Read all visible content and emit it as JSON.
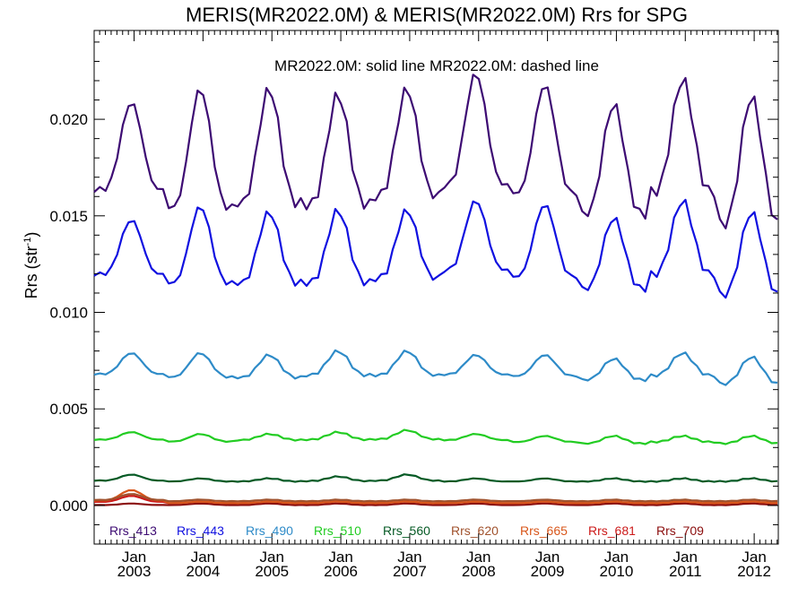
{
  "chart_data": {
    "type": "line",
    "title": "MERIS(MR2022.0M) & MERIS(MR2022.0M)  Rrs for SPG",
    "annotation": "MR2022.0M: solid line   MR2022.0M: dashed line",
    "ylabel": "Rrs (str",
    "ylabel_sup": "-1",
    "ylabel_suffix": ")",
    "xlabel": "",
    "ylim": [
      -0.002,
      0.0246
    ],
    "xlim": [
      2002.42,
      2012.35
    ],
    "y_ticks": [
      0.0,
      0.005,
      0.01,
      0.015,
      0.02
    ],
    "y_tick_labels": [
      "0.000",
      "0.005",
      "0.010",
      "0.015",
      "0.020"
    ],
    "x_ticks": [
      {
        "value": 2003.0,
        "month": "Jan",
        "year": "2003"
      },
      {
        "value": 2004.0,
        "month": "Jan",
        "year": "2004"
      },
      {
        "value": 2005.0,
        "month": "Jan",
        "year": "2005"
      },
      {
        "value": 2006.0,
        "month": "Jan",
        "year": "2006"
      },
      {
        "value": 2007.0,
        "month": "Jan",
        "year": "2007"
      },
      {
        "value": 2008.0,
        "month": "Jan",
        "year": "2008"
      },
      {
        "value": 2009.0,
        "month": "Jan",
        "year": "2009"
      },
      {
        "value": 2010.0,
        "month": "Jan",
        "year": "2010"
      },
      {
        "value": 2011.0,
        "month": "Jan",
        "year": "2011"
      },
      {
        "value": 2012.0,
        "month": "Jan",
        "year": "2012"
      }
    ],
    "grid": false,
    "legend_position": "bottom",
    "series": [
      {
        "name": "Rrs_413",
        "color": "#3d0b73",
        "base": 0.0176,
        "amp": 0.0038,
        "noise": 0.00045,
        "trough": [
          0.0151,
          0.0137,
          0.014,
          0.014,
          0.0145,
          0.015,
          0.0146,
          0.0135,
          0.0146,
          0.0127
        ],
        "peak": [
          0.0209,
          0.0216,
          0.0216,
          0.0213,
          0.0216,
          0.0224,
          0.0218,
          0.0208,
          0.0221,
          0.0212
        ]
      },
      {
        "name": "Rrs_443",
        "color": "#1010e0",
        "base": 0.0129,
        "amp": 0.0024,
        "noise": 0.0003,
        "trough": [
          0.0112,
          0.0104,
          0.0105,
          0.0105,
          0.0108,
          0.0112,
          0.0108,
          0.0102,
          0.0109,
          0.0097
        ],
        "peak": [
          0.0148,
          0.0155,
          0.0152,
          0.0153,
          0.0153,
          0.0158,
          0.0156,
          0.0149,
          0.0158,
          0.0152
        ]
      },
      {
        "name": "Rrs_490",
        "color": "#2e8bc8",
        "base": 0.0071,
        "amp": 0.0007,
        "noise": 0.00012,
        "trough": [
          0.0065,
          0.0063,
          0.0063,
          0.0064,
          0.0064,
          0.0065,
          0.0064,
          0.0062,
          0.0064,
          0.0059
        ],
        "peak": [
          0.0079,
          0.0079,
          0.0078,
          0.008,
          0.008,
          0.0078,
          0.0078,
          0.0076,
          0.0079,
          0.0077
        ]
      },
      {
        "name": "Rrs_510",
        "color": "#22cc22",
        "base": 0.00345,
        "amp": 0.0002,
        "noise": 6e-05,
        "trough": [
          0.0033,
          0.0032,
          0.0033,
          0.0033,
          0.0033,
          0.0033,
          0.0032,
          0.0031,
          0.0032,
          0.0031
        ],
        "peak": [
          0.0038,
          0.0037,
          0.0037,
          0.0038,
          0.0039,
          0.0037,
          0.0036,
          0.0036,
          0.0036,
          0.0036
        ]
      },
      {
        "name": "Rrs_560",
        "color": "#065a25",
        "base": 0.00135,
        "amp": 0.0001,
        "noise": 4e-05,
        "trough": [
          0.0012,
          0.0012,
          0.0012,
          0.0012,
          0.0012,
          0.0012,
          0.0012,
          0.0012,
          0.0012,
          0.0012
        ],
        "peak": [
          0.0016,
          0.0014,
          0.0014,
          0.0015,
          0.0016,
          0.0014,
          0.0014,
          0.0014,
          0.0014,
          0.0014
        ]
      },
      {
        "name": "Rrs_620",
        "color": "#a0522d",
        "base": 0.00025,
        "amp": 4e-05,
        "noise": 2e-05,
        "trough": [
          0.0002,
          0.0002,
          0.0002,
          0.0002,
          0.0002,
          0.0002,
          0.0002,
          0.0002,
          0.0002,
          0.0002
        ],
        "peak": [
          0.0006,
          0.0003,
          0.0003,
          0.0003,
          0.0003,
          0.0003,
          0.0003,
          0.0003,
          0.0003,
          0.0003
        ]
      },
      {
        "name": "Rrs_665",
        "color": "#d8561a",
        "base": 0.00018,
        "amp": 3e-05,
        "noise": 2e-05,
        "trough": [
          0.0001,
          0.0001,
          0.0001,
          0.0001,
          0.0001,
          0.0001,
          0.0001,
          0.0001,
          0.0001,
          0.0001
        ],
        "peak": [
          0.0008,
          0.0002,
          0.0002,
          0.0002,
          0.0002,
          0.0002,
          0.0002,
          0.0002,
          0.0002,
          0.0002
        ]
      },
      {
        "name": "Rrs_681",
        "color": "#cc1a1a",
        "base": 0.00016,
        "amp": 3e-05,
        "noise": 2e-05,
        "trough": [
          0.0001,
          0.0001,
          0.0001,
          0.0001,
          0.0001,
          0.0001,
          0.0001,
          0.0001,
          0.0001,
          0.0001
        ],
        "peak": [
          0.0005,
          0.0002,
          0.0002,
          0.0002,
          0.0002,
          0.0002,
          0.0002,
          0.0002,
          0.0002,
          0.0002
        ]
      },
      {
        "name": "Rrs_709",
        "color": "#8b0e0e",
        "base": 3e-05,
        "amp": 1e-05,
        "noise": 1e-05,
        "trough": [
          0.0,
          0.0,
          0.0,
          0.0,
          0.0,
          0.0,
          0.0,
          0.0,
          0.0,
          0.0
        ],
        "peak": [
          0.0001,
          0.0001,
          0.0001,
          0.0001,
          0.0001,
          0.0001,
          0.0001,
          0.0001,
          0.0001,
          0.0001
        ]
      }
    ]
  }
}
